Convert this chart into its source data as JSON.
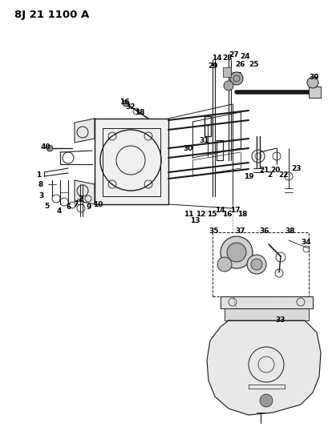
{
  "title": "8J 21 1100 A",
  "bg_color": "#ffffff",
  "fig_width": 4.1,
  "fig_height": 5.33,
  "dpi": 100,
  "line_color": "#1a1a1a",
  "label_fontsize": 6.0,
  "title_fontsize": 9.5
}
